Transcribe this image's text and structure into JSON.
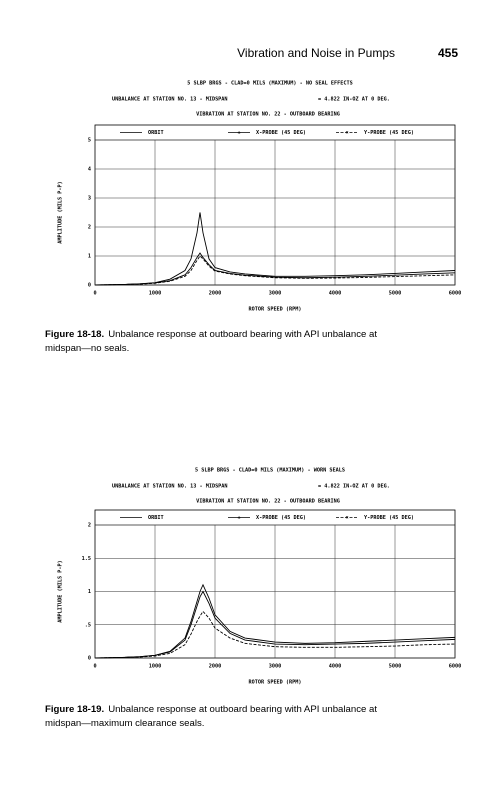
{
  "header": {
    "title": "Vibration and Noise in Pumps",
    "page": "455"
  },
  "chart_data": [
    {
      "type": "line",
      "title": "5 SLBP BRGS - CLAD=0 MILS (MAXIMUM) - NO SEAL EFFECTS",
      "unbalance": "UNBALANCE AT STATION NO. 13 - MIDSPAN",
      "unbalance_value": "= 4.822 IN-OZ AT 0 DEG.",
      "vibration": "VIBRATION AT STATION NO. 22 - OUTBOARD BEARING",
      "xlabel": "ROTOR SPEED (RPM)",
      "ylabel": "AMPLITUDE (MILS P-P)",
      "xlim": [
        0,
        6000
      ],
      "xticks": [
        0,
        1000,
        2000,
        3000,
        4000,
        5000,
        6000
      ],
      "ylim": [
        0,
        5
      ],
      "yticks": [
        0,
        1,
        2,
        3,
        4,
        5
      ],
      "grid": true,
      "x": [
        0,
        250,
        500,
        750,
        1000,
        1250,
        1500,
        1600,
        1700,
        1750,
        1800,
        1900,
        2000,
        2250,
        2500,
        3000,
        3500,
        4000,
        4500,
        5000,
        5500,
        6000
      ],
      "series": [
        {
          "name": "ORBIT",
          "color": "#000000",
          "values": [
            0,
            0.01,
            0.02,
            0.04,
            0.08,
            0.2,
            0.5,
            0.9,
            1.8,
            2.5,
            1.8,
            0.9,
            0.6,
            0.45,
            0.38,
            0.3,
            0.3,
            0.32,
            0.35,
            0.4,
            0.45,
            0.5
          ]
        },
        {
          "name": "X-PROBE (45 DEG)",
          "color": "#000000",
          "values": [
            0,
            0.01,
            0.02,
            0.04,
            0.07,
            0.15,
            0.35,
            0.6,
            0.95,
            1.1,
            0.95,
            0.7,
            0.5,
            0.4,
            0.34,
            0.27,
            0.25,
            0.27,
            0.3,
            0.34,
            0.38,
            0.42
          ]
        },
        {
          "name": "Y-PROBE (45 DEG)",
          "color": "#000000",
          "values": [
            0,
            0.01,
            0.02,
            0.03,
            0.06,
            0.13,
            0.3,
            0.5,
            0.85,
            1.0,
            0.9,
            0.65,
            0.48,
            0.38,
            0.32,
            0.25,
            0.23,
            0.24,
            0.26,
            0.29,
            0.32,
            0.35
          ]
        }
      ],
      "figure_label": "Figure 18-18.",
      "caption": "Unbalance response at outboard bearing with API unbalance at midspan—no seals."
    },
    {
      "type": "line",
      "title": "5 SLBP BRGS - CLAD=0 MILS (MAXIMUM) - WORN SEALS",
      "unbalance": "UNBALANCE AT STATION NO. 13 - MIDSPAN",
      "unbalance_value": "= 4.822 IN-OZ AT 0 DEG.",
      "vibration": "VIBRATION AT STATION NO. 22 - OUTBOARD BEARING",
      "xlabel": "ROTOR SPEED (RPM)",
      "ylabel": "AMPLITUDE (MILS P-P)",
      "xlim": [
        0,
        6000
      ],
      "xticks": [
        0,
        1000,
        2000,
        3000,
        4000,
        5000,
        6000
      ],
      "ylim": [
        0,
        2
      ],
      "yticks": [
        0,
        {
          "value": 0.5,
          "label": ".5"
        },
        1,
        1.5,
        2
      ],
      "grid": true,
      "x": [
        0,
        250,
        500,
        750,
        1000,
        1250,
        1500,
        1600,
        1700,
        1750,
        1800,
        1900,
        2000,
        2250,
        2500,
        3000,
        3500,
        4000,
        4500,
        5000,
        5500,
        6000
      ],
      "series": [
        {
          "name": "ORBIT",
          "color": "#000000",
          "values": [
            0,
            0.005,
            0.01,
            0.02,
            0.04,
            0.1,
            0.3,
            0.55,
            0.85,
            1.0,
            1.1,
            0.9,
            0.65,
            0.4,
            0.3,
            0.24,
            0.22,
            0.23,
            0.25,
            0.27,
            0.29,
            0.31
          ]
        },
        {
          "name": "X-PROBE (45 DEG)",
          "color": "#000000",
          "values": [
            0,
            0.005,
            0.01,
            0.02,
            0.04,
            0.09,
            0.27,
            0.5,
            0.78,
            0.92,
            1.0,
            0.82,
            0.6,
            0.37,
            0.27,
            0.21,
            0.2,
            0.21,
            0.22,
            0.24,
            0.26,
            0.28
          ]
        },
        {
          "name": "Y-PROBE (45 DEG)",
          "color": "#000000",
          "values": [
            0,
            0.005,
            0.01,
            0.015,
            0.03,
            0.07,
            0.2,
            0.36,
            0.55,
            0.63,
            0.7,
            0.6,
            0.45,
            0.3,
            0.22,
            0.17,
            0.16,
            0.16,
            0.17,
            0.18,
            0.2,
            0.21
          ]
        }
      ],
      "figure_label": "Figure 18-19.",
      "caption": "Unbalance response at outboard bearing with API unbalance at midspan—maximum clearance seals."
    }
  ]
}
